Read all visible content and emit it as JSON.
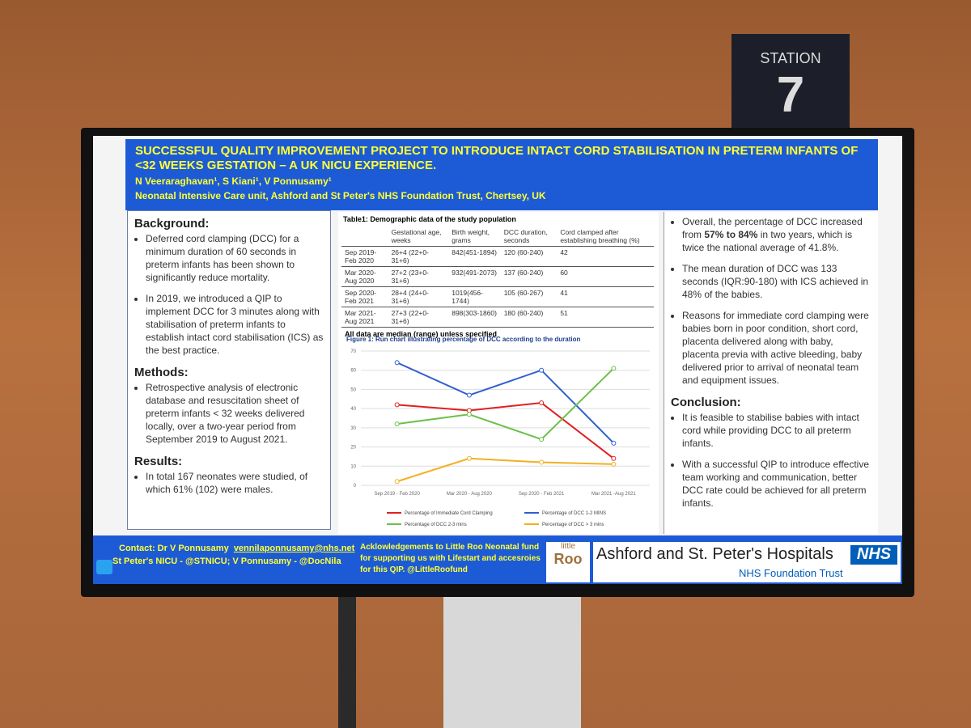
{
  "station": {
    "label": "STATION",
    "number": "7"
  },
  "poster": {
    "title": "SUCCESSFUL QUALITY IMPROVEMENT PROJECT TO INTRODUCE INTACT CORD STABILISATION IN PRETERM INFANTS OF <32 WEEKS GESTATION – A UK NICU EXPERIENCE.",
    "authors": "N Veeraraghavan¹, S Kiani¹, V Ponnusamy¹",
    "affiliation": "Neonatal Intensive Care unit, Ashford and St Peter's NHS Foundation Trust, Chertsey, UK",
    "left_sections": [
      {
        "heading": "Background:",
        "bullets": [
          "Deferred cord clamping (DCC) for a minimum duration of 60 seconds in preterm infants has been shown to significantly reduce mortality.",
          "In 2019, we introduced a QIP to implement DCC for 3 minutes along with stabilisation of preterm infants to establish intact cord stabilisation (ICS) as the best practice."
        ]
      },
      {
        "heading": "Methods:",
        "bullets": [
          "Retrospective analysis of electronic database and resuscitation sheet of preterm infants < 32 weeks delivered locally, over a two-year period from September 2019 to August 2021."
        ]
      },
      {
        "heading": "Results:",
        "bullets": [
          "In total 167 neonates were studied, of which 61% (102) were males."
        ]
      }
    ],
    "table": {
      "caption": "Table1: Demographic data of the study population",
      "header": [
        "Gestational age, weeks",
        "Birth weight, grams",
        "DCC duration, seconds",
        "Cord clamped after establishing breathing (%)"
      ],
      "rows": [
        [
          "Sep 2019-Feb 2020",
          "26+4 (22+0-31+6)",
          "842(451-1894)",
          "120 (60-240)",
          "42"
        ],
        [
          "Mar 2020-Aug 2020",
          "27+2 (23+0-31+6)",
          "932(491-2073)",
          "137 (60-240)",
          "60"
        ],
        [
          "Sep 2020-Feb 2021",
          "28+4 (24+0-31+6)",
          "1019(456-1744)",
          "105 (60-267)",
          "41"
        ],
        [
          "Mar 2021-Aug 2021",
          "27+3 (22+0-31+6)",
          "898(303-1860)",
          "180 (60-240)",
          "51"
        ]
      ],
      "note": "All data are median (range) unless specified"
    },
    "right_bullets": [
      [
        "Overall, the percentage of DCC increased from ",
        "57% to 84%",
        " in two years, which is twice the national average of 41.8%."
      ],
      [
        "The mean duration of DCC was 133 seconds (IQR:90-180) with ICS achieved in 48% of the babies."
      ],
      [
        "Reasons for immediate cord clamping were babies born in poor condition, short cord, placenta delivered along with baby, placenta previa with active bleeding, baby delivered prior to arrival of neonatal team and equipment issues."
      ]
    ],
    "conclusion_heading": "Conclusion:",
    "conclusion_bullets": [
      "It is feasible to stabilise babies with intact cord while providing DCC to all preterm infants.",
      "With a successful QIP to introduce effective team working and communication, better DCC rate could be achieved for all preterm infants."
    ],
    "footer": {
      "contact": "Contact:  Dr V Ponnusamy",
      "email": "vennilaponnusamy@nhs.net",
      "social": "St Peter's NICU - @STNICU; V Ponnusamy - @DocNila",
      "acknowledgement": "Acklowledgements to Little Roo Neonatal fund for supporting us with Lifestart and accesroies for this QIP.  @LittleRoofund",
      "logo_small": "little",
      "logo_big": "Roo",
      "hospital": "Ashford and St. Peter's Hospitals",
      "nhs": "NHS",
      "trust": "NHS Foundation Trust"
    }
  },
  "chart_data": {
    "type": "line",
    "title": "Figure 1: Run chart illustrating percentage of DCC according to the duration",
    "categories": [
      "Sep 2019 - Feb 2020",
      "Mar 2020 - Aug 2020",
      "Sep 2020 - Feb 2021",
      "Mar 2021 -Aug 2021"
    ],
    "series": [
      {
        "name": "Percentage of Immediate Cord Clamping",
        "color": "#e02020",
        "values": [
          42,
          39,
          43,
          14
        ]
      },
      {
        "name": "Percentage of DCC 1-2 MINS",
        "color": "#2f5fd0",
        "values": [
          64,
          47,
          60,
          22
        ]
      },
      {
        "name": "Percentage of DCC 2-3 mins",
        "color": "#6cc04a",
        "values": [
          32,
          37,
          24,
          61
        ]
      },
      {
        "name": "Percentage of DCC > 3 mins",
        "color": "#f2b020",
        "values": [
          2,
          14,
          12,
          11
        ]
      }
    ],
    "ylim": [
      0,
      70
    ],
    "yticks": [
      0,
      10,
      20,
      30,
      40,
      50,
      60,
      70
    ],
    "grid": true
  }
}
